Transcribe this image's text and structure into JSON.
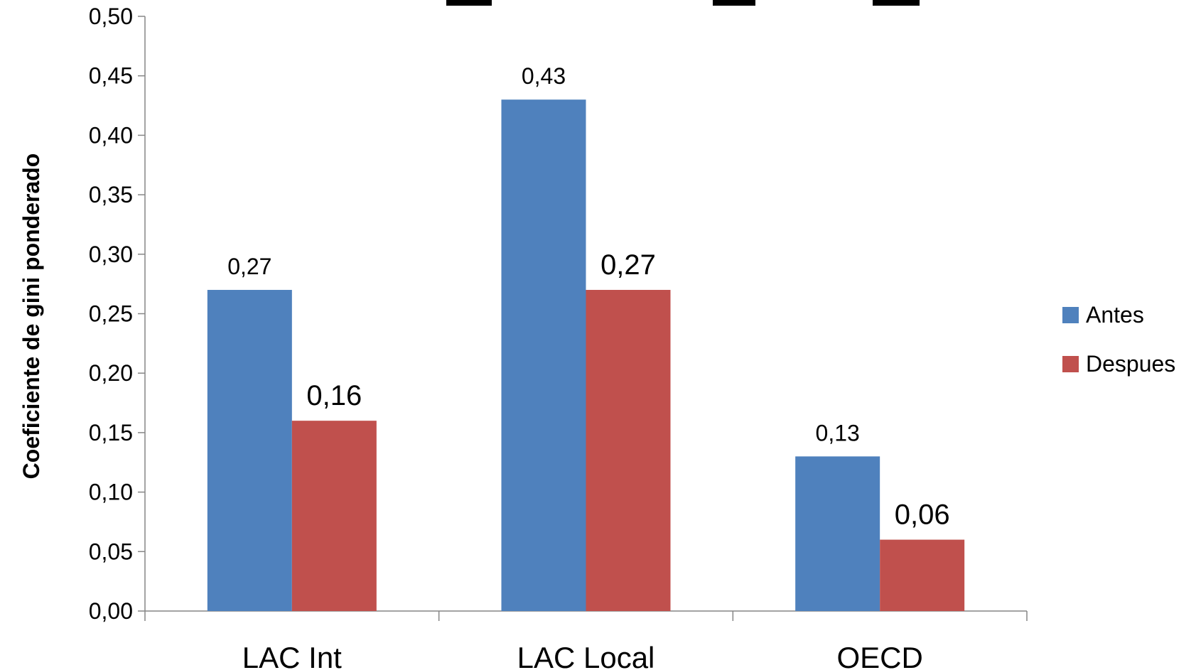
{
  "chart_data": {
    "type": "bar",
    "title": "",
    "xlabel": "",
    "ylabel": "Coeficiente de gini ponderado",
    "categories": [
      "LAC Int",
      "LAC Local",
      "OECD"
    ],
    "series": [
      {
        "name": "Antes",
        "color": "#4F81BD",
        "values": [
          0.27,
          0.43,
          0.13
        ],
        "labels": [
          "0,27",
          "0,43",
          "0,13"
        ]
      },
      {
        "name": "Despues",
        "color": "#C0504D",
        "values": [
          0.16,
          0.27,
          0.06
        ],
        "labels": [
          "0,16",
          "0,27",
          "0,06"
        ]
      }
    ],
    "ylim": [
      0,
      0.5
    ],
    "yticks": [
      "0,00",
      "0,05",
      "0,10",
      "0,15",
      "0,20",
      "0,25",
      "0,30",
      "0,35",
      "0,40",
      "0,45",
      "0,50"
    ],
    "grid": false,
    "legend_position": "right"
  }
}
